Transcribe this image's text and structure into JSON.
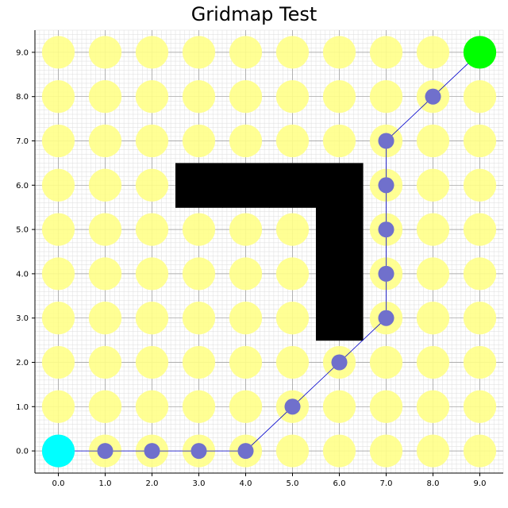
{
  "chart_data": {
    "type": "scatter",
    "title": "Gridmap Test",
    "xlabel": "",
    "ylabel": "",
    "xlim": [
      -0.5,
      9.5
    ],
    "ylim": [
      -0.5,
      9.5
    ],
    "x_ticks": [
      "0.0",
      "1.0",
      "2.0",
      "3.0",
      "4.0",
      "5.0",
      "6.0",
      "7.0",
      "8.0",
      "9.0"
    ],
    "y_ticks": [
      "0.0",
      "1.0",
      "2.0",
      "3.0",
      "4.0",
      "5.0",
      "6.0",
      "7.0",
      "8.0",
      "9.0"
    ],
    "grid": true,
    "minor_grid_step": 0.1,
    "free_cells": [
      [
        0,
        0
      ],
      [
        1,
        0
      ],
      [
        2,
        0
      ],
      [
        3,
        0
      ],
      [
        4,
        0
      ],
      [
        5,
        0
      ],
      [
        6,
        0
      ],
      [
        7,
        0
      ],
      [
        8,
        0
      ],
      [
        9,
        0
      ],
      [
        0,
        1
      ],
      [
        1,
        1
      ],
      [
        2,
        1
      ],
      [
        3,
        1
      ],
      [
        4,
        1
      ],
      [
        5,
        1
      ],
      [
        6,
        1
      ],
      [
        7,
        1
      ],
      [
        8,
        1
      ],
      [
        9,
        1
      ],
      [
        0,
        2
      ],
      [
        1,
        2
      ],
      [
        2,
        2
      ],
      [
        3,
        2
      ],
      [
        4,
        2
      ],
      [
        5,
        2
      ],
      [
        6,
        2
      ],
      [
        7,
        2
      ],
      [
        8,
        2
      ],
      [
        9,
        2
      ],
      [
        0,
        3
      ],
      [
        1,
        3
      ],
      [
        2,
        3
      ],
      [
        3,
        3
      ],
      [
        4,
        3
      ],
      [
        5,
        3
      ],
      [
        7,
        3
      ],
      [
        8,
        3
      ],
      [
        9,
        3
      ],
      [
        0,
        4
      ],
      [
        1,
        4
      ],
      [
        2,
        4
      ],
      [
        3,
        4
      ],
      [
        4,
        4
      ],
      [
        5,
        4
      ],
      [
        7,
        4
      ],
      [
        8,
        4
      ],
      [
        9,
        4
      ],
      [
        0,
        5
      ],
      [
        1,
        5
      ],
      [
        2,
        5
      ],
      [
        3,
        5
      ],
      [
        4,
        5
      ],
      [
        5,
        5
      ],
      [
        7,
        5
      ],
      [
        8,
        5
      ],
      [
        9,
        5
      ],
      [
        0,
        6
      ],
      [
        1,
        6
      ],
      [
        2,
        6
      ],
      [
        7,
        6
      ],
      [
        8,
        6
      ],
      [
        9,
        6
      ],
      [
        0,
        7
      ],
      [
        1,
        7
      ],
      [
        2,
        7
      ],
      [
        3,
        7
      ],
      [
        4,
        7
      ],
      [
        5,
        7
      ],
      [
        6,
        7
      ],
      [
        7,
        7
      ],
      [
        8,
        7
      ],
      [
        9,
        7
      ],
      [
        0,
        8
      ],
      [
        1,
        8
      ],
      [
        2,
        8
      ],
      [
        3,
        8
      ],
      [
        4,
        8
      ],
      [
        5,
        8
      ],
      [
        6,
        8
      ],
      [
        7,
        8
      ],
      [
        8,
        8
      ],
      [
        9,
        8
      ],
      [
        0,
        9
      ],
      [
        1,
        9
      ],
      [
        2,
        9
      ],
      [
        3,
        9
      ],
      [
        4,
        9
      ],
      [
        5,
        9
      ],
      [
        6,
        9
      ],
      [
        7,
        9
      ],
      [
        8,
        9
      ],
      [
        9,
        9
      ]
    ],
    "obstacles": [
      [
        3,
        6
      ],
      [
        4,
        6
      ],
      [
        5,
        6
      ],
      [
        6,
        6
      ],
      [
        6,
        5
      ],
      [
        6,
        4
      ],
      [
        6,
        3
      ]
    ],
    "path": [
      [
        0,
        0
      ],
      [
        1,
        0
      ],
      [
        2,
        0
      ],
      [
        3,
        0
      ],
      [
        4,
        0
      ],
      [
        5,
        1
      ],
      [
        6,
        2
      ],
      [
        7,
        3
      ],
      [
        7,
        4
      ],
      [
        7,
        5
      ],
      [
        7,
        6
      ],
      [
        7,
        7
      ],
      [
        8,
        8
      ],
      [
        9,
        9
      ]
    ],
    "start": [
      0,
      0
    ],
    "goal": [
      9,
      9
    ],
    "colors": {
      "free_cell": "#ffff88",
      "obstacle": "#000000",
      "path_node": "#7070cc",
      "path_line": "#0000cc",
      "start": "#00ffff",
      "goal": "#00ff00",
      "major_grid": "#999999",
      "minor_grid": "#dddddd"
    }
  }
}
